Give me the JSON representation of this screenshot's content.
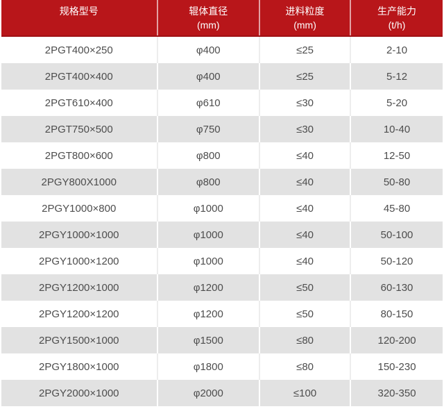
{
  "chart_data": {
    "type": "table",
    "columns": [
      {
        "label": "规格型号",
        "sublabel": ""
      },
      {
        "label": "辊体直径",
        "sublabel": "(mm)"
      },
      {
        "label": "进料粒度",
        "sublabel": "(mm)"
      },
      {
        "label": "生产能力",
        "sublabel": "(t/h)"
      }
    ],
    "rows": [
      [
        "2PGT400×250",
        "φ400",
        "≤25",
        "2-10"
      ],
      [
        "2PGT400×400",
        "φ400",
        "≤25",
        "5-12"
      ],
      [
        "2PGT610×400",
        "φ610",
        "≤30",
        "5-20"
      ],
      [
        "2PGT750×500",
        "φ750",
        "≤30",
        "10-40"
      ],
      [
        "2PGT800×600",
        "φ800",
        "≤40",
        "12-50"
      ],
      [
        "2PGY800X1000",
        "φ800",
        "≤40",
        "50-80"
      ],
      [
        "2PGY1000×800",
        "φ1000",
        "≤40",
        "45-80"
      ],
      [
        "2PGY1000×1000",
        "φ1000",
        "≤40",
        "50-100"
      ],
      [
        "2PGY1000×1200",
        "φ1000",
        "≤40",
        "50-120"
      ],
      [
        "2PGY1200×1000",
        "φ1200",
        "≤50",
        "60-130"
      ],
      [
        "2PGY1200×1200",
        "φ1200",
        "≤50",
        "80-150"
      ],
      [
        "2PGY1500×1000",
        "φ1500",
        "≤80",
        "120-200"
      ],
      [
        "2PGY1800×1000",
        "φ1800",
        "≤80",
        "150-230"
      ],
      [
        "2PGY2000×1000",
        "φ2000",
        "≤100",
        "320-350"
      ]
    ]
  },
  "colors": {
    "header_bg": "#b8161a",
    "header_border": "#9f1014",
    "header_text": "#ffffff",
    "row_bg": "#ffffff",
    "row_alt_bg": "#e2e2e2",
    "cell_text": "#4d4d4d"
  },
  "layout": {
    "column_widths_percent": [
      35.3,
      23.2,
      20.6,
      20.9
    ]
  }
}
